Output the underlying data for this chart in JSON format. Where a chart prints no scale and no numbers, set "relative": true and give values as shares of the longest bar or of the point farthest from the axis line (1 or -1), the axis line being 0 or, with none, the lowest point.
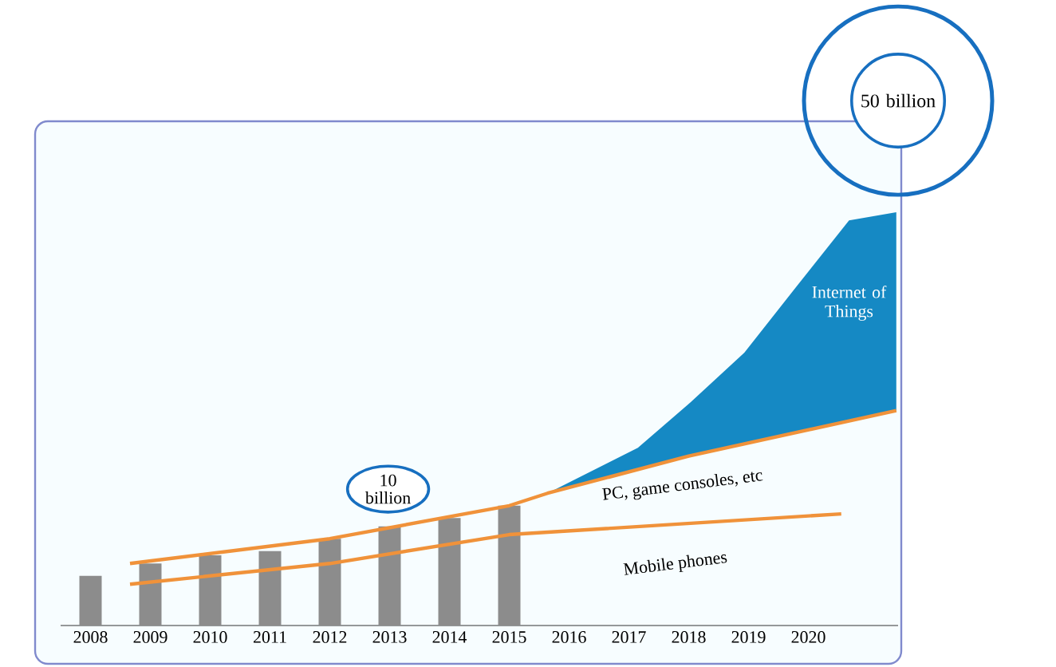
{
  "chart_data": {
    "type": "bar",
    "relative": true,
    "x": [
      2008,
      2009,
      2010,
      2011,
      2012,
      2013,
      2014,
      2015
    ],
    "xlim": [
      2007.5,
      2021.5
    ],
    "xticks": [
      2008,
      2009,
      2010,
      2011,
      2012,
      2013,
      2014,
      2015,
      2016,
      2017,
      2018,
      2019,
      2020
    ],
    "tick_labels": "x",
    "annotations": [
      "10 billion",
      "50 billion"
    ],
    "series": [
      {
        "color": "#8c8c8c",
        "values": [
          0.12,
          0.15,
          0.17,
          0.18,
          0.21,
          0.24,
          0.26,
          0.29
        ]
      },
      {
        "type": "area",
        "name": "Internet of Things",
        "color": "#1589c4",
        "x": [
          2015.64,
          2017.15,
          2018.03,
          2018.93,
          2019.8,
          2020.68,
          2021.47
        ],
        "values": [
          0.32,
          0.43,
          0.54,
          0.66,
          0.82,
          0.98,
          1
        ]
      },
      {
        "type": "line",
        "name": "PC, game consoles, etc",
        "color": "#f0923a",
        "x": [
          2008.66,
          2012,
          2015,
          2015.64,
          2018,
          2021.47
        ],
        "values": [
          0.15,
          0.21,
          0.29,
          0.32,
          0.41,
          0.52
        ]
      },
      {
        "type": "line",
        "name": "Mobile phones",
        "color": "#f0923a",
        "x": [
          2008.66,
          2012,
          2015,
          2020.55
        ],
        "values": [
          0.1,
          0.15,
          0.22,
          0.27
        ]
      }
    ]
  }
}
